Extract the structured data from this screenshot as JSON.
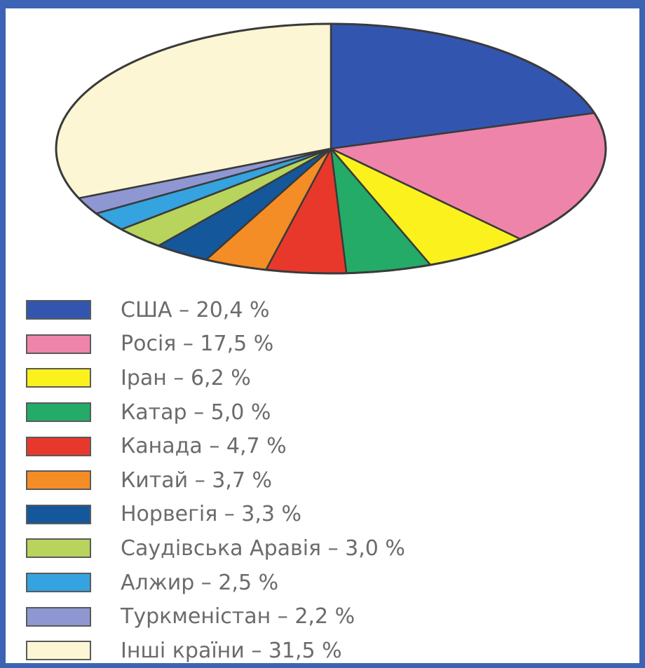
{
  "chart_data": {
    "type": "pie",
    "title": "",
    "legend_position": "bottom",
    "slices": [
      {
        "label": "США – 20,4  %",
        "value": 20.4,
        "color": "#3256b0"
      },
      {
        "label": "Росія – 17,5 %",
        "value": 17.5,
        "color": "#ef84ab"
      },
      {
        "label": "Іран – 6,2 %",
        "value": 6.2,
        "color": "#fbf11d"
      },
      {
        "label": "Катар – 5,0 %",
        "value": 5.0,
        "color": "#24ab68"
      },
      {
        "label": "Канада – 4,7 %",
        "value": 4.7,
        "color": "#e8382c"
      },
      {
        "label": "Китай – 3,7 %",
        "value": 3.7,
        "color": "#f48d25"
      },
      {
        "label": "Норвегія – 3,3 %",
        "value": 3.3,
        "color": "#14579a"
      },
      {
        "label": "Саудівська Аравія – 3,0 %",
        "value": 3.0,
        "color": "#b8d45c"
      },
      {
        "label": "Алжир – 2,5 %",
        "value": 2.5,
        "color": "#34a3df"
      },
      {
        "label": "Туркменістан – 2,2 %",
        "value": 2.2,
        "color": "#8f97d2"
      },
      {
        "label": "Інші країни – 31,5 %",
        "value": 31.5,
        "color": "#fdf6d4"
      }
    ]
  },
  "colors": {
    "frame": "#3d64b4",
    "background": "#ffffff",
    "slice_stroke": "#3a3a3a"
  }
}
